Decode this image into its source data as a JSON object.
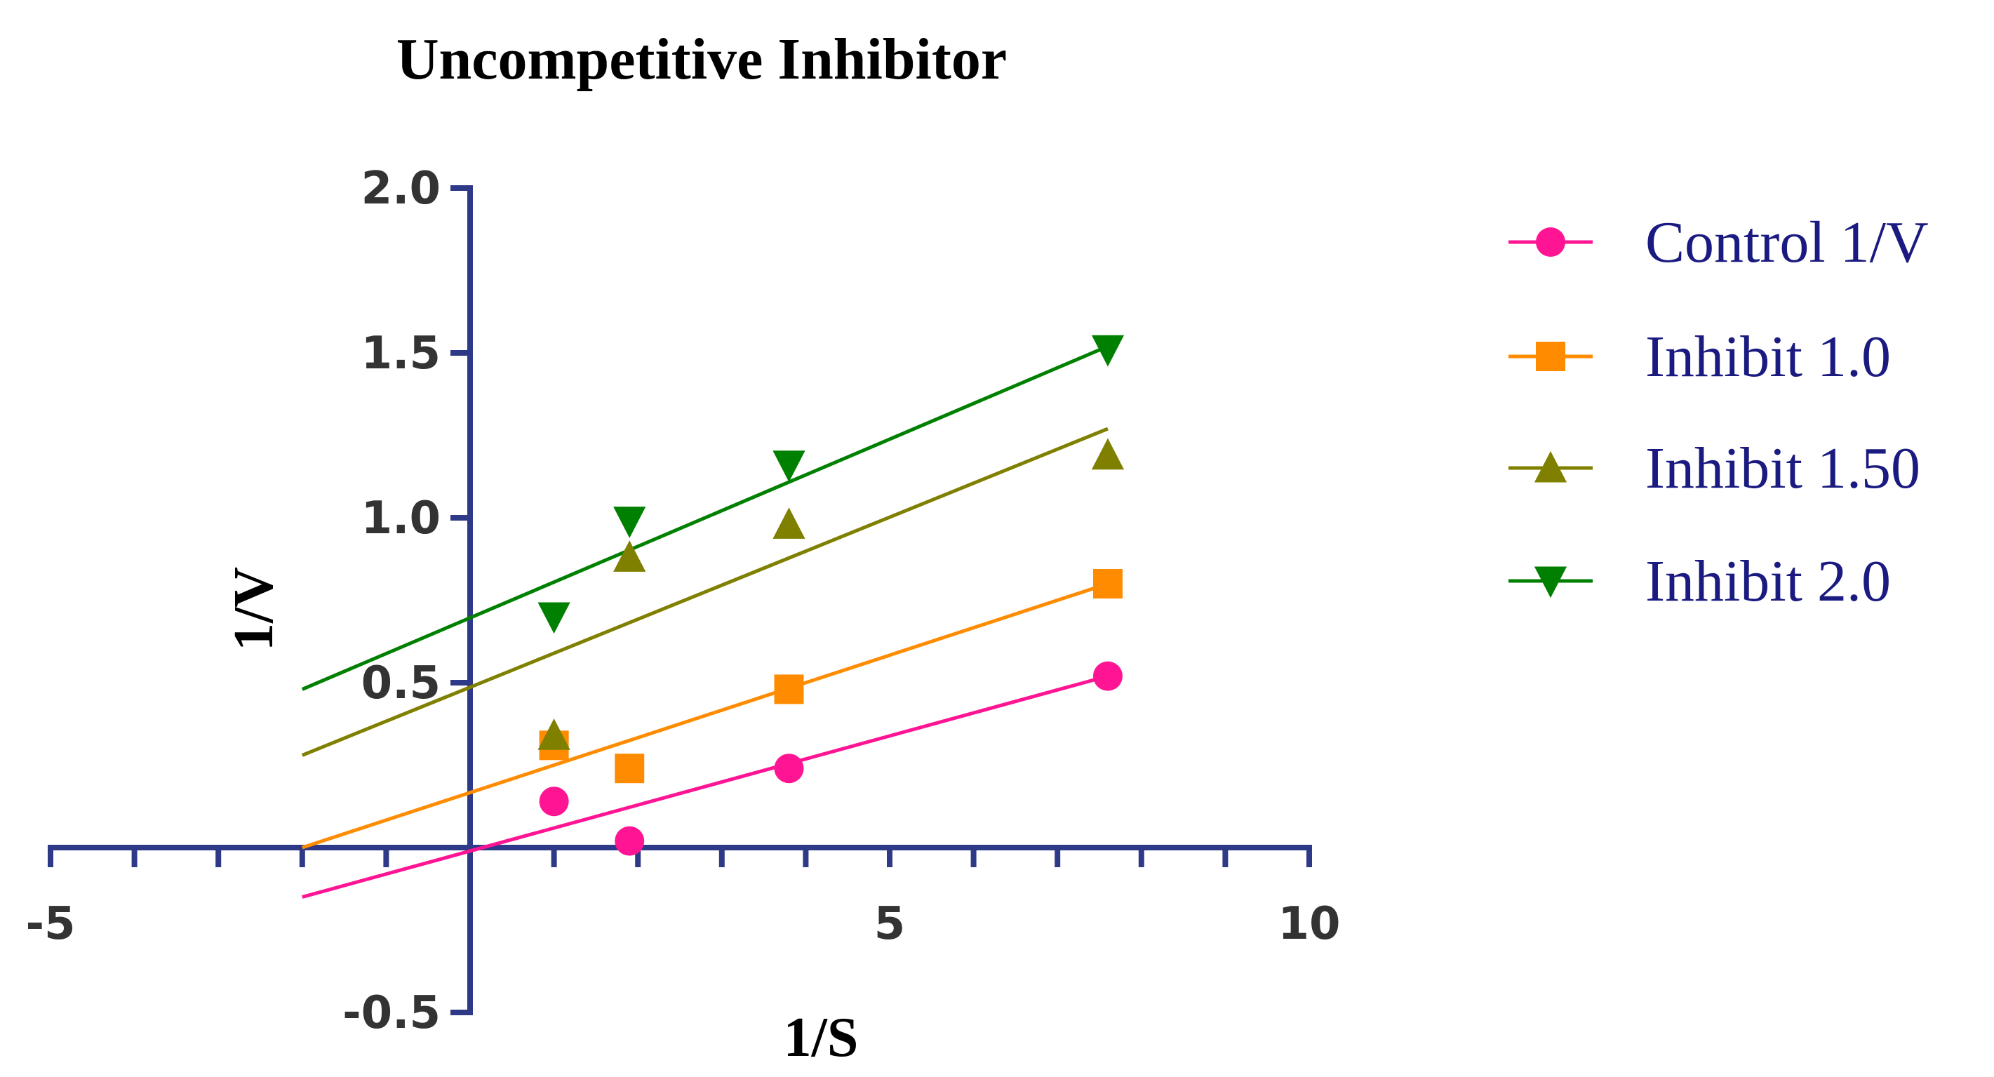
{
  "chart_data": {
    "type": "scatter",
    "title": "Uncompetitive Inhibitor",
    "xlabel": "1/S",
    "ylabel": "1/V",
    "xlim": [
      -5,
      10
    ],
    "ylim": [
      -0.5,
      2.0
    ],
    "x_ticks": [
      -5,
      5,
      10
    ],
    "y_ticks": [
      -0.5,
      0.5,
      1.0,
      1.5,
      2.0
    ],
    "x_tick_labels": [
      "-5",
      "5",
      "10"
    ],
    "y_tick_labels": [
      "-0.5",
      "0.5",
      "1.0",
      "1.5",
      "2.0"
    ],
    "axis_color": "#2e3a87",
    "legend_position": "right",
    "series": [
      {
        "name": "Control 1/V",
        "marker": "circle",
        "color": "#ff1493",
        "x": [
          1.0,
          1.9,
          3.8,
          7.6
        ],
        "y": [
          0.14,
          0.02,
          0.24,
          0.52
        ],
        "fit": {
          "x": [
            -2.0,
            7.6
          ],
          "y": [
            -0.15,
            0.52
          ]
        }
      },
      {
        "name": "Inhibit 1.0",
        "marker": "square",
        "color": "#ff8c00",
        "x": [
          1.0,
          1.9,
          3.8,
          7.6
        ],
        "y": [
          0.31,
          0.24,
          0.48,
          0.8
        ],
        "fit": {
          "x": [
            -2.0,
            7.6
          ],
          "y": [
            0.0,
            0.8
          ]
        }
      },
      {
        "name": "Inhibit 1.50",
        "marker": "triangle-up",
        "color": "#808000",
        "x": [
          1.0,
          1.9,
          3.8,
          7.6
        ],
        "y": [
          0.34,
          0.88,
          0.98,
          1.19
        ],
        "fit": {
          "x": [
            -2.0,
            7.6
          ],
          "y": [
            0.28,
            1.27
          ]
        }
      },
      {
        "name": "Inhibit 2.0",
        "marker": "triangle-down",
        "color": "#008000",
        "x": [
          1.0,
          1.9,
          3.8,
          7.6
        ],
        "y": [
          0.7,
          0.99,
          1.16,
          1.51
        ],
        "fit": {
          "x": [
            -2.0,
            7.6
          ],
          "y": [
            0.48,
            1.52
          ]
        }
      }
    ]
  }
}
